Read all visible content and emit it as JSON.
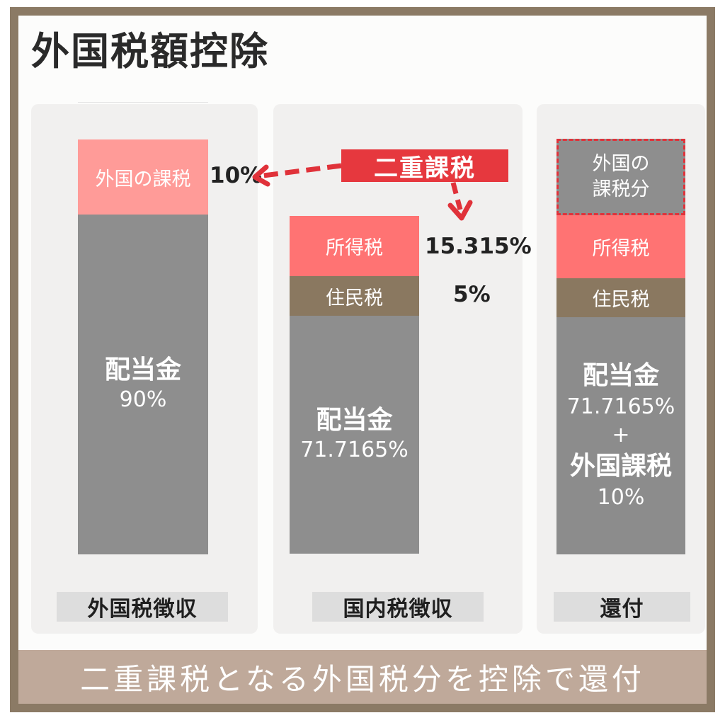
{
  "title": "外国税額控除",
  "callout": "二重課税",
  "columns": [
    {
      "label": "外国税徴収",
      "tax_segment": "外国の課税",
      "tax_percent": "10%",
      "dividend_label": "配当金",
      "dividend_percent": "90%"
    },
    {
      "label": "国内税徴収",
      "income_tax": "所得税",
      "income_tax_percent": "15.315%",
      "resident_tax": "住民税",
      "resident_tax_percent": "5%",
      "dividend_label": "配当金",
      "dividend_percent": "71.7165%"
    },
    {
      "label": "還付",
      "foreign_tax_portion": "外国の\n課税分",
      "income_tax": "所得税",
      "resident_tax": "住民税",
      "dividend_label": "配当金",
      "dividend_percent": "71.7165%",
      "plus": "+",
      "foreign_tax_label": "外国課税",
      "foreign_tax_percent": "10%"
    }
  ],
  "banner": "二重課税となる外国税分を控除で還付",
  "colors": {
    "frame": "#8b7a65",
    "foreign_tax": "#ff9b98",
    "income_tax": "#ff7373",
    "resident_tax": "#8a7860",
    "dividend": "#8e8e8e",
    "callout": "#e6383e",
    "banner": "#bfa99a"
  }
}
